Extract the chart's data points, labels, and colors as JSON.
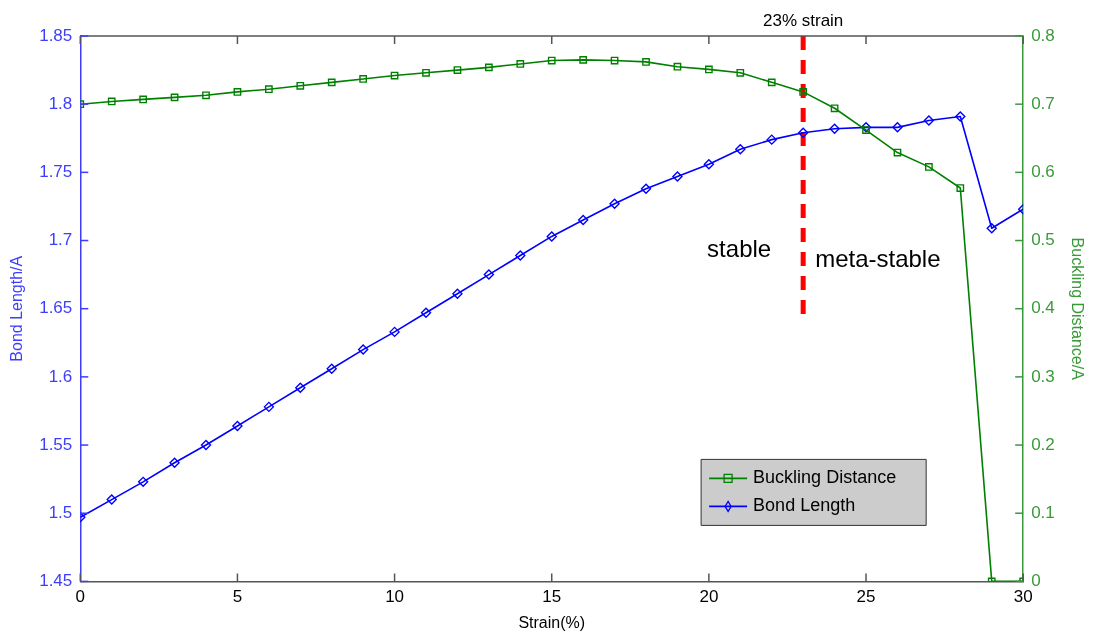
{
  "chart_data": {
    "type": "line",
    "xlabel": "Strain(%)",
    "ylabel": "Bond Length/A",
    "y2label": "Buckling Distance/A",
    "x": [
      0,
      1,
      2,
      3,
      4,
      5,
      6,
      7,
      8,
      9,
      10,
      11,
      12,
      13,
      14,
      15,
      16,
      17,
      18,
      19,
      20,
      21,
      22,
      23,
      24,
      25,
      26,
      27,
      28,
      29,
      30
    ],
    "series": [
      {
        "name": "Buckling Distance",
        "color": "#008000",
        "axis": "y2",
        "marker": "square",
        "values": [
          0.7,
          0.704,
          0.707,
          0.71,
          0.713,
          0.718,
          0.722,
          0.727,
          0.732,
          0.737,
          0.742,
          0.746,
          0.75,
          0.754,
          0.759,
          0.764,
          0.765,
          0.764,
          0.762,
          0.755,
          0.751,
          0.746,
          0.732,
          0.718,
          0.694,
          0.662,
          0.629,
          0.608,
          0.577,
          0,
          0
        ]
      },
      {
        "name": "Bond Length",
        "color": "#0000ff",
        "marker": "diamond",
        "values": [
          1.497,
          1.51,
          1.523,
          1.537,
          1.55,
          1.564,
          1.578,
          1.592,
          1.606,
          1.62,
          1.633,
          1.647,
          1.661,
          1.675,
          1.689,
          1.703,
          1.715,
          1.727,
          1.738,
          1.747,
          1.756,
          1.767,
          1.774,
          1.779,
          1.782,
          1.783,
          1.783,
          1.788,
          1.791,
          1.709,
          1.723
        ]
      }
    ],
    "xlim": [
      0,
      30
    ],
    "xticks": [
      0,
      5,
      10,
      15,
      20,
      25,
      30
    ],
    "ylim": [
      1.45,
      1.85
    ],
    "yticks": [
      1.45,
      1.5,
      1.55,
      1.6,
      1.65,
      1.7,
      1.75,
      1.8,
      1.85
    ],
    "y2lim": [
      0,
      0.8
    ],
    "y2ticks": [
      0,
      0.1,
      0.2,
      0.3,
      0.4,
      0.5,
      0.6,
      0.7,
      0.8
    ],
    "ref_lines": [
      {
        "axis": "x",
        "value": 23,
        "label": "23% strain",
        "color": "#ff0000",
        "line_style": "dashed"
      }
    ],
    "annotations": [
      "stable",
      "meta-stable"
    ],
    "legend": "bottom right",
    "grid": false
  }
}
